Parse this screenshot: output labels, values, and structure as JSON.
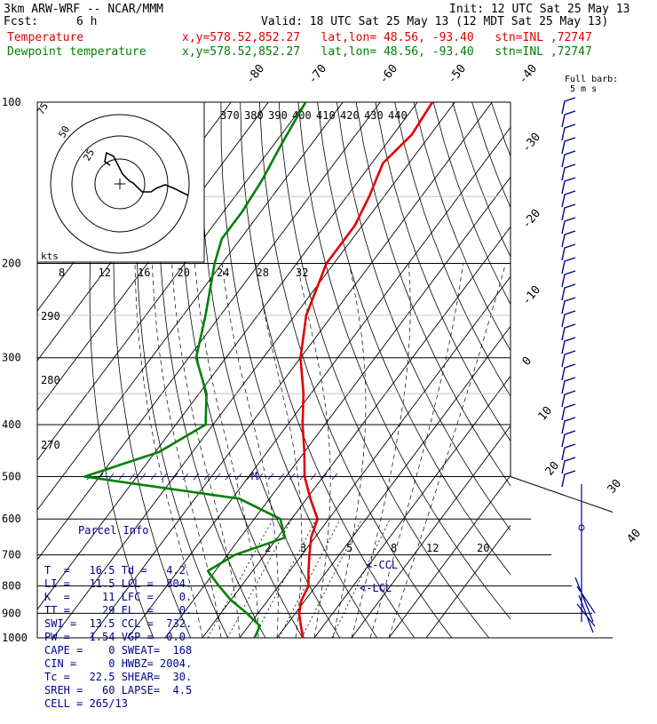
{
  "header": {
    "model": "3km ARW-WRF -- NCAR/MMM",
    "init": "Init: 12 UTC Sat 25 May 13",
    "fcst_label": "Fcst:",
    "fcst_value": "6 h",
    "valid": "Valid: 18 UTC Sat 25 May 13 (12 MDT Sat 25 May 13)",
    "temp_label": "Temperature",
    "temp_loc": "x,y=578.52,852.27   lat,lon= 48.56, -93.40   stn=INL ,72747",
    "dew_label": "Dewpoint temperature",
    "dew_loc": "x,y=578.52,852.27   lat,lon= 48.56, -93.40   stn=INL ,72747"
  },
  "barb_legend": {
    "line1": "Full barb:",
    "line2": "5 m s"
  },
  "hodograph": {
    "rings": [
      "75",
      "50",
      "25"
    ],
    "units": "kts"
  },
  "parcel": {
    "title": "Parcel Info",
    "rows": [
      "T  =   16.5 Td =   4.2",
      "LI =   11.5 LCL =  804.",
      "K  =     11 LFC =    0.",
      "TT =     29 EL  =    0.",
      "SWI =  13.5 CCL =  732.",
      "PW =   1.54 VGP =  0.0",
      "CAPE =    0 SWEAT=  168",
      "CIN =     0 HWBZ= 2004.",
      "Tc =   22.5 SHEAR=  30.",
      "SREH =   60 LAPSE=  4.5",
      "CELL = 265/13"
    ]
  },
  "annotations": {
    "ccl": "<-CCL",
    "lcl": "<-LCL",
    "mark": "M"
  },
  "colors": {
    "temperature": "#e00000",
    "dewpoint": "#008000",
    "barbs": "#00008b",
    "grid": "#000000"
  },
  "chart_data": {
    "type": "line",
    "title": "",
    "pressure_levels": [
      100,
      200,
      300,
      400,
      500,
      600,
      700,
      800,
      900,
      1000
    ],
    "pressure_labels": [
      "100",
      "200",
      "300",
      "400",
      "500",
      "600",
      "700",
      "800",
      "900",
      "1000"
    ],
    "isotherm_labels": [
      "-80",
      "-70",
      "-60",
      "-50",
      "-40",
      "-30",
      "-20",
      "-10",
      "0",
      "10",
      "20",
      "30",
      "40"
    ],
    "isentrope_top_labels": [
      "370",
      "380",
      "390",
      "400",
      "410",
      "420",
      "430",
      "440"
    ],
    "isentrope_left_labels": [
      "290",
      "280",
      "270"
    ],
    "mixing_ratio_top_labels": [
      "8",
      "12",
      "16",
      "20",
      "24",
      "28",
      "32"
    ],
    "mixing_ratio_bottom_labels": [
      "2",
      "3",
      "5",
      "8",
      "12",
      "20"
    ],
    "series": [
      {
        "name": "Temperature",
        "color": "#e00000",
        "points": [
          [
            100,
            -56
          ],
          [
            115,
            -55
          ],
          [
            130,
            -57
          ],
          [
            150,
            -54
          ],
          [
            170,
            -52
          ],
          [
            190,
            -52
          ],
          [
            200,
            -52
          ],
          [
            250,
            -47
          ],
          [
            300,
            -40
          ],
          [
            350,
            -32
          ],
          [
            400,
            -26
          ],
          [
            450,
            -20
          ],
          [
            500,
            -15
          ],
          [
            550,
            -9
          ],
          [
            600,
            -3
          ],
          [
            650,
            -1
          ],
          [
            700,
            2
          ],
          [
            750,
            5
          ],
          [
            800,
            8
          ],
          [
            850,
            9
          ],
          [
            900,
            11
          ],
          [
            950,
            14
          ],
          [
            1000,
            17
          ]
        ]
      },
      {
        "name": "Dewpoint temperature",
        "color": "#008000",
        "points": [
          [
            100,
            -90
          ],
          [
            120,
            -88
          ],
          [
            140,
            -86
          ],
          [
            160,
            -85
          ],
          [
            180,
            -85
          ],
          [
            200,
            -82
          ],
          [
            250,
            -74
          ],
          [
            300,
            -68
          ],
          [
            350,
            -58
          ],
          [
            400,
            -52
          ],
          [
            450,
            -59
          ],
          [
            500,
            -74
          ],
          [
            550,
            -28
          ],
          [
            600,
            -13
          ],
          [
            650,
            -8
          ],
          [
            700,
            -18
          ],
          [
            750,
            -22
          ],
          [
            800,
            -16
          ],
          [
            850,
            -10
          ],
          [
            900,
            -3
          ],
          [
            950,
            3
          ],
          [
            1000,
            4
          ]
        ]
      }
    ]
  }
}
